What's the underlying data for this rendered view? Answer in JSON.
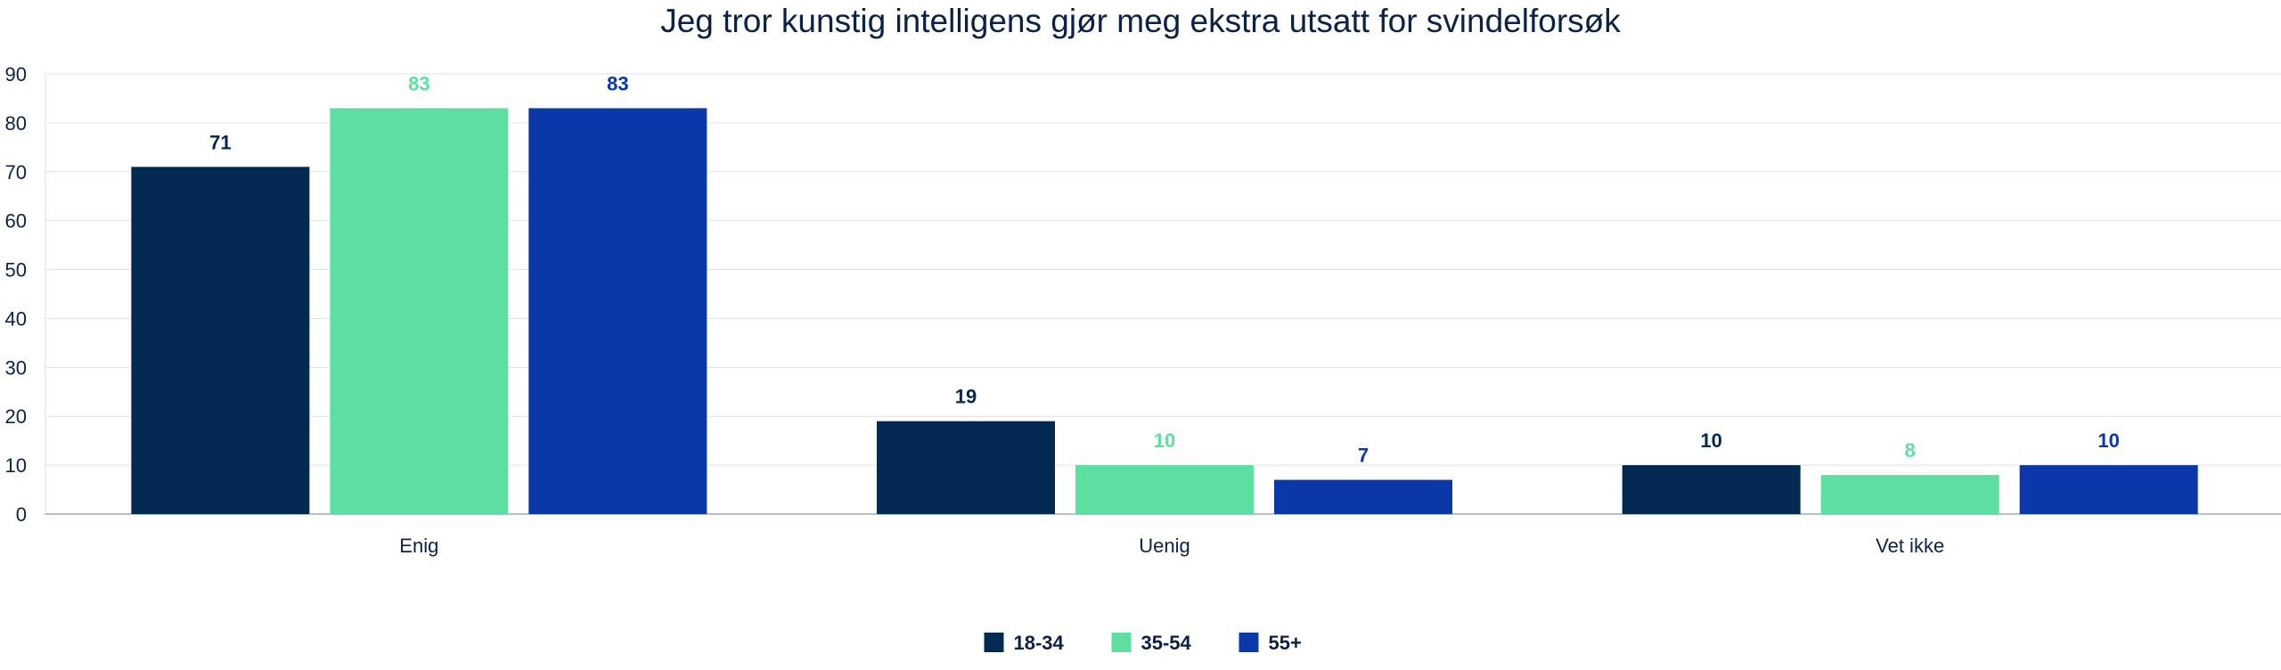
{
  "chart_data": {
    "type": "bar",
    "title": "Jeg tror kunstig intelligens gjør meg ekstra utsatt for svindelforsøk",
    "xlabel": "",
    "ylabel": "",
    "ylim": [
      0,
      90
    ],
    "yticks": [
      0,
      10,
      20,
      30,
      40,
      50,
      60,
      70,
      80,
      90
    ],
    "grid": true,
    "legend_position": "bottom-center",
    "categories": [
      "Enig",
      "Uenig",
      "Vet ikke"
    ],
    "series": [
      {
        "name": "18-34",
        "color": "#032a52",
        "values": [
          71,
          19,
          10
        ]
      },
      {
        "name": "35-54",
        "color": "#5cdfa1",
        "values": [
          83,
          10,
          8
        ]
      },
      {
        "name": "55+",
        "color": "#0b38a9",
        "values": [
          83,
          7,
          10
        ]
      }
    ]
  }
}
